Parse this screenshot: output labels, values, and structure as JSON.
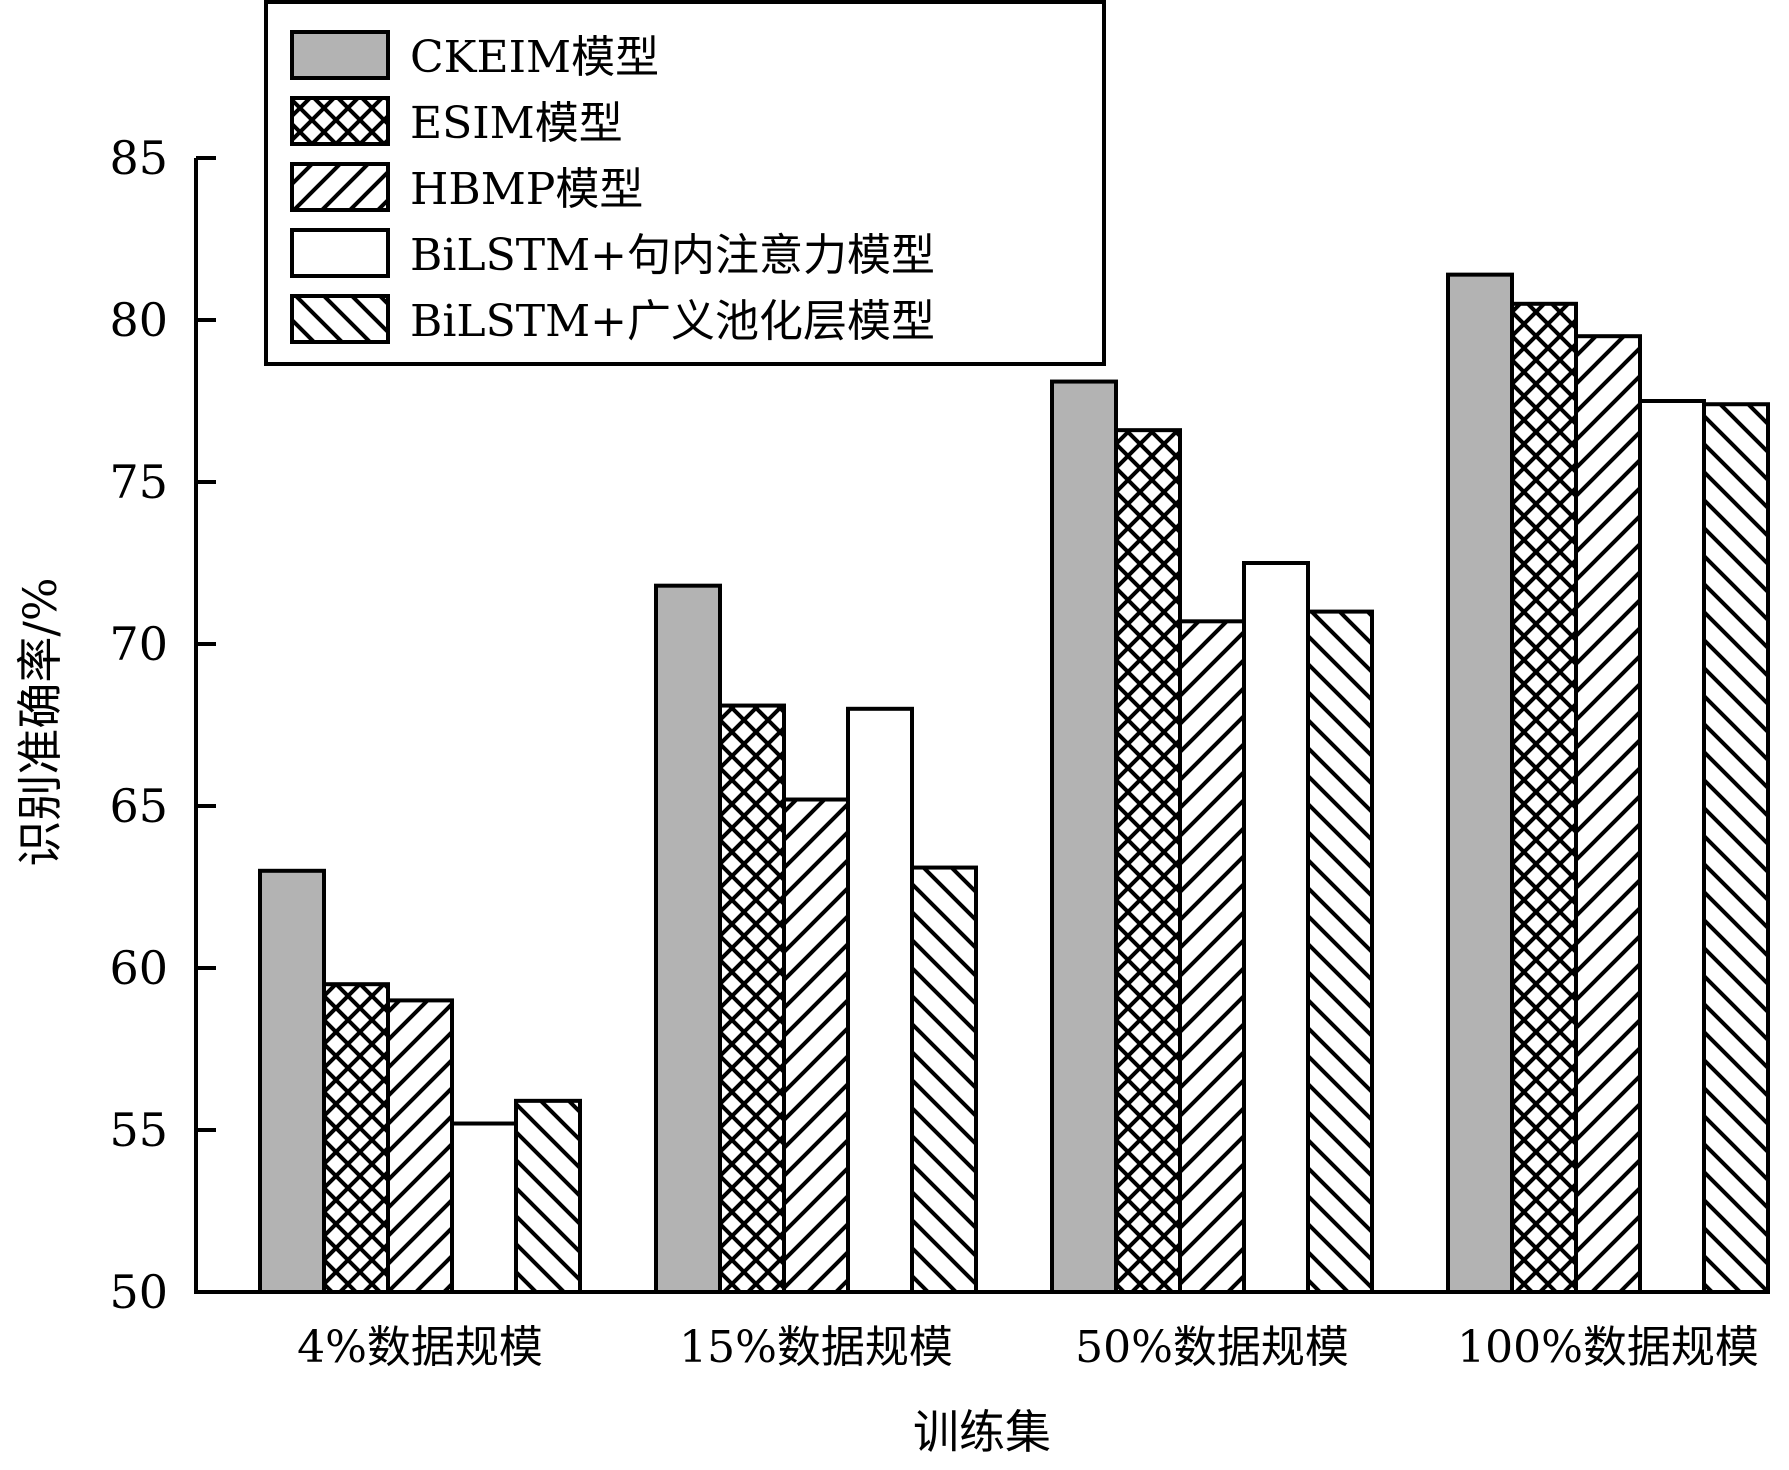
{
  "chart_data": {
    "type": "bar",
    "title": "",
    "xlabel": "训练集",
    "ylabel": "识别准确率/%",
    "ylim": [
      50,
      85
    ],
    "yticks": [
      50,
      55,
      60,
      65,
      70,
      75,
      80,
      85
    ],
    "grid": false,
    "legend_position": "top-left",
    "categories": [
      "4%数据规模",
      "15%数据规模",
      "50%数据规模",
      "100%数据规模"
    ],
    "series": [
      {
        "name": "CKEIM模型",
        "pattern": "solid-gray",
        "fill": "#b3b3b3",
        "values": [
          63.0,
          71.8,
          78.1,
          81.4
        ]
      },
      {
        "name": "ESIM模型",
        "pattern": "crosshatch",
        "fill": "#ffffff",
        "values": [
          59.5,
          68.1,
          76.6,
          80.5
        ]
      },
      {
        "name": "HBMP模型",
        "pattern": "forward-diagonal",
        "fill": "#ffffff",
        "values": [
          59.0,
          65.2,
          70.7,
          79.5
        ]
      },
      {
        "name": "BiLSTM+句内注意力模型",
        "pattern": "none",
        "fill": "#ffffff",
        "values": [
          55.2,
          68.0,
          72.5,
          77.5
        ]
      },
      {
        "name": "BiLSTM+广义池化层模型",
        "pattern": "backward-diagonal",
        "fill": "#ffffff",
        "values": [
          55.9,
          63.1,
          71.0,
          77.4
        ]
      }
    ]
  }
}
